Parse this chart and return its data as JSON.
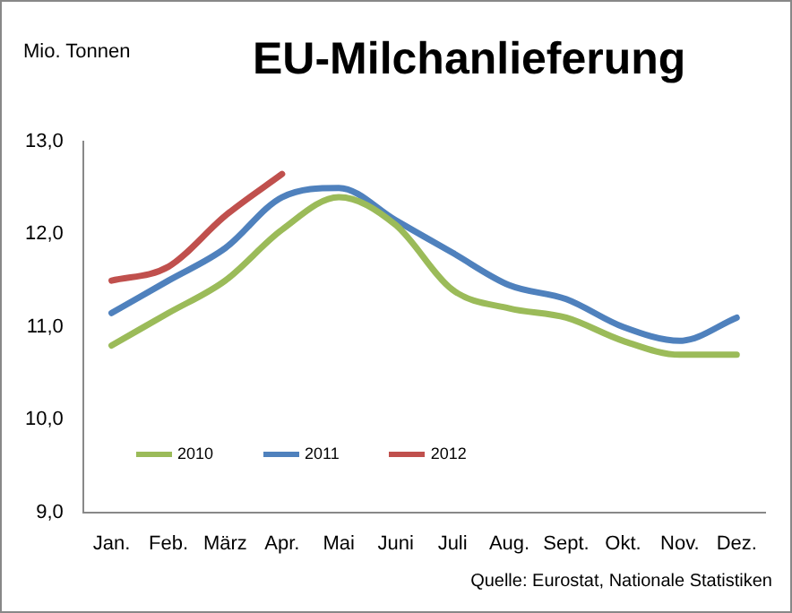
{
  "chart_data": {
    "type": "line",
    "title": "EU-Milchanlieferung",
    "ylabel": "Mio. Tonnen",
    "categories": [
      "Jan.",
      "Feb.",
      "März",
      "Apr.",
      "Mai",
      "Juni",
      "Juli",
      "Aug.",
      "Sept.",
      "Okt.",
      "Nov.",
      "Dez."
    ],
    "series": [
      {
        "name": "2010",
        "color": "#9bbb59",
        "values": [
          10.8,
          11.15,
          11.5,
          12.05,
          12.4,
          12.1,
          11.4,
          11.2,
          11.1,
          10.85,
          10.7,
          10.7
        ]
      },
      {
        "name": "2011",
        "color": "#4f81bd",
        "values": [
          11.15,
          11.5,
          11.85,
          12.4,
          12.5,
          12.15,
          11.8,
          11.45,
          11.3,
          11.0,
          10.85,
          11.1
        ]
      },
      {
        "name": "2012",
        "color": "#c0504d",
        "values": [
          11.5,
          11.65,
          12.2,
          12.65,
          null,
          null,
          null,
          null,
          null,
          null,
          null,
          null
        ]
      }
    ],
    "ylim": [
      9,
      13
    ],
    "yticks": [
      {
        "value": 9,
        "label": "9,0"
      },
      {
        "value": 10,
        "label": "10,0"
      },
      {
        "value": 11,
        "label": "11,0"
      },
      {
        "value": 12,
        "label": "12,0"
      },
      {
        "value": 13,
        "label": "13,0"
      }
    ],
    "grid": false,
    "legend": "bottom",
    "marker": "none",
    "line_style": "solid",
    "annotations": [
      "Quelle: Eurostat, Nationale Statistiken"
    ]
  }
}
